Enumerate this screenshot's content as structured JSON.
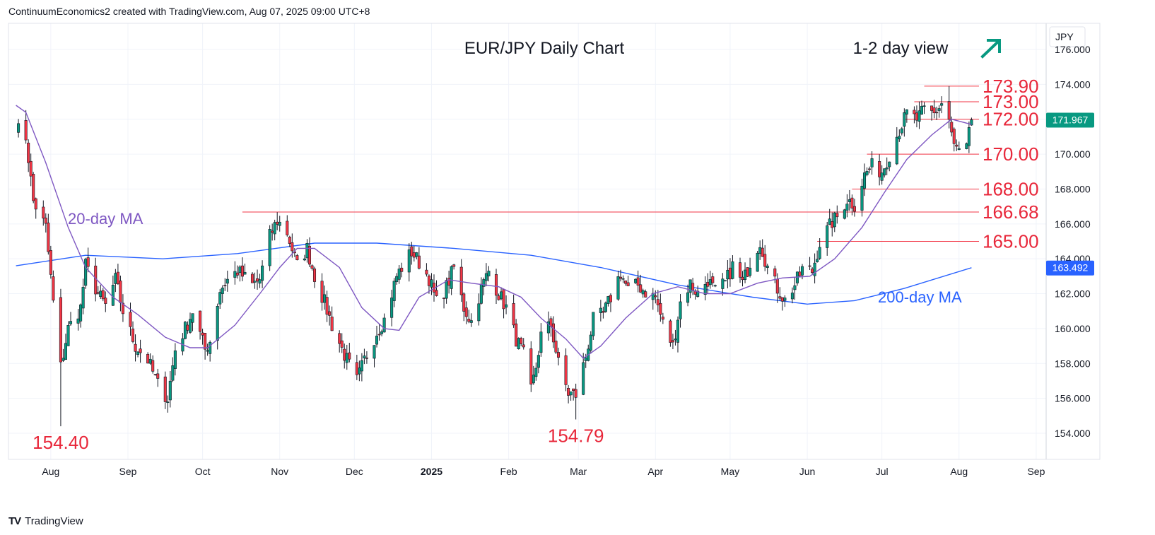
{
  "header": {
    "attribution": "ContinuumEconomics2 created with TradingView.com, Aug 07, 2025 09:00 UTC+8"
  },
  "brand": {
    "logo_text": "TV",
    "name": "TradingView"
  },
  "colors": {
    "bull": "#089981",
    "bear": "#f23645",
    "ma20": "#7e57c2",
    "ma200": "#2962ff",
    "level": "#f23645",
    "arrow": "#089981"
  },
  "chart_data": {
    "type": "candlestick",
    "title": "EUR/JPY Daily Chart",
    "view_label": "1-2 day view",
    "view_direction": "up",
    "currency_label": "JPY",
    "price_badge": "171.967",
    "ma200_badge": "163.492",
    "ylim": [
      152.5,
      177.5
    ],
    "y_ticks": [
      "154.000",
      "156.000",
      "158.000",
      "160.000",
      "162.000",
      "164.000",
      "166.000",
      "168.000",
      "170.000",
      "172.000",
      "174.000",
      "176.000"
    ],
    "x_ticks": [
      {
        "label": "Aug",
        "date": "2024-08-01"
      },
      {
        "label": "Sep",
        "date": "2024-09-01"
      },
      {
        "label": "Oct",
        "date": "2024-10-01"
      },
      {
        "label": "Nov",
        "date": "2024-11-01"
      },
      {
        "label": "Dec",
        "date": "2024-12-01"
      },
      {
        "label": "2025",
        "date": "2025-01-01"
      },
      {
        "label": "Feb",
        "date": "2025-02-01"
      },
      {
        "label": "Mar",
        "date": "2025-03-01"
      },
      {
        "label": "Apr",
        "date": "2025-04-01"
      },
      {
        "label": "May",
        "date": "2025-05-01"
      },
      {
        "label": "Jun",
        "date": "2025-06-01"
      },
      {
        "label": "Jul",
        "date": "2025-07-01"
      },
      {
        "label": "Aug",
        "date": "2025-08-01"
      },
      {
        "label": "Sep",
        "date": "2025-09-01"
      }
    ],
    "levels": [
      {
        "label": "173.90",
        "value": 173.9,
        "from": "2025-07-18"
      },
      {
        "label": "173.00",
        "value": 173.0,
        "from": "2025-07-14"
      },
      {
        "label": "172.00",
        "value": 172.0,
        "from": "2025-07-10"
      },
      {
        "label": "170.00",
        "value": 170.0,
        "from": "2025-06-25"
      },
      {
        "label": "168.00",
        "value": 168.0,
        "from": "2025-06-19"
      },
      {
        "label": "166.68",
        "value": 166.68,
        "from": "2024-10-17"
      },
      {
        "label": "165.00",
        "value": 165.0,
        "from": "2025-06-05"
      }
    ],
    "annotations": [
      {
        "text": "154.40",
        "date": "2024-08-05",
        "value": 154.4
      },
      {
        "text": "154.79",
        "date": "2025-02-28",
        "value": 154.79
      }
    ],
    "ma_labels": [
      {
        "text": "20-day MA",
        "series": "ma20"
      },
      {
        "text": "200-day MA",
        "series": "ma200"
      }
    ],
    "anchors": [
      [
        "2024-07-18",
        171.5
      ],
      [
        "2024-07-22",
        171.0
      ],
      [
        "2024-07-25",
        167.3
      ],
      [
        "2024-07-30",
        165.8
      ],
      [
        "2024-08-02",
        161.5
      ],
      [
        "2024-08-05",
        157.8
      ],
      [
        "2024-08-08",
        160.0
      ],
      [
        "2024-08-13",
        161.2
      ],
      [
        "2024-08-15",
        163.6
      ],
      [
        "2024-08-20",
        162.0
      ],
      [
        "2024-08-23",
        161.3
      ],
      [
        "2024-08-27",
        162.8
      ],
      [
        "2024-08-30",
        161.0
      ],
      [
        "2024-09-04",
        159.0
      ],
      [
        "2024-09-09",
        158.2
      ],
      [
        "2024-09-13",
        156.8
      ],
      [
        "2024-09-17",
        156.0
      ],
      [
        "2024-09-20",
        158.8
      ],
      [
        "2024-09-25",
        160.3
      ],
      [
        "2024-09-27",
        161.0
      ],
      [
        "2024-10-02",
        158.8
      ],
      [
        "2024-10-04",
        159.3
      ],
      [
        "2024-10-08",
        162.2
      ],
      [
        "2024-10-11",
        162.8
      ],
      [
        "2024-10-15",
        163.3
      ],
      [
        "2024-10-21",
        162.5
      ],
      [
        "2024-10-24",
        162.8
      ],
      [
        "2024-10-28",
        165.3
      ],
      [
        "2024-10-31",
        166.2
      ],
      [
        "2024-11-04",
        165.5
      ],
      [
        "2024-11-08",
        163.6
      ],
      [
        "2024-11-12",
        164.6
      ],
      [
        "2024-11-15",
        163.0
      ],
      [
        "2024-11-19",
        161.5
      ],
      [
        "2024-11-22",
        160.2
      ],
      [
        "2024-11-27",
        158.5
      ],
      [
        "2024-12-02",
        157.0
      ],
      [
        "2024-12-05",
        158.2
      ],
      [
        "2024-12-10",
        159.8
      ],
      [
        "2024-12-13",
        160.5
      ],
      [
        "2024-12-18",
        163.0
      ],
      [
        "2024-12-20",
        163.5
      ],
      [
        "2024-12-24",
        164.4
      ],
      [
        "2024-12-27",
        163.8
      ],
      [
        "2024-12-31",
        162.9
      ],
      [
        "2025-01-03",
        161.5
      ],
      [
        "2025-01-07",
        162.4
      ],
      [
        "2025-01-10",
        163.5
      ],
      [
        "2025-01-14",
        161.2
      ],
      [
        "2025-01-17",
        160.4
      ],
      [
        "2025-01-21",
        162.3
      ],
      [
        "2025-01-24",
        163.3
      ],
      [
        "2025-01-28",
        162.0
      ],
      [
        "2025-01-31",
        161.2
      ],
      [
        "2025-02-04",
        159.4
      ],
      [
        "2025-02-07",
        158.5
      ],
      [
        "2025-02-10",
        156.4
      ],
      [
        "2025-02-12",
        157.8
      ],
      [
        "2025-02-14",
        159.6
      ],
      [
        "2025-02-18",
        160.2
      ],
      [
        "2025-02-21",
        158.0
      ],
      [
        "2025-02-25",
        156.3
      ],
      [
        "2025-02-28",
        156.2
      ],
      [
        "2025-03-04",
        158.4
      ],
      [
        "2025-03-07",
        160.5
      ],
      [
        "2025-03-11",
        160.8
      ],
      [
        "2025-03-14",
        161.8
      ],
      [
        "2025-03-18",
        163.2
      ],
      [
        "2025-03-21",
        162.2
      ],
      [
        "2025-03-25",
        162.5
      ],
      [
        "2025-03-28",
        162.1
      ],
      [
        "2025-04-01",
        161.8
      ],
      [
        "2025-04-04",
        160.3
      ],
      [
        "2025-04-08",
        159.0
      ],
      [
        "2025-04-11",
        161.5
      ],
      [
        "2025-04-15",
        162.6
      ],
      [
        "2025-04-18",
        162.0
      ],
      [
        "2025-04-22",
        162.8
      ],
      [
        "2025-04-25",
        162.1
      ],
      [
        "2025-04-29",
        162.6
      ],
      [
        "2025-05-02",
        163.6
      ],
      [
        "2025-05-06",
        162.6
      ],
      [
        "2025-05-09",
        163.8
      ],
      [
        "2025-05-13",
        165.0
      ],
      [
        "2025-05-16",
        163.5
      ],
      [
        "2025-05-20",
        162.3
      ],
      [
        "2025-05-23",
        161.6
      ],
      [
        "2025-05-27",
        162.5
      ],
      [
        "2025-05-30",
        163.4
      ],
      [
        "2025-06-03",
        163.3
      ],
      [
        "2025-06-06",
        164.9
      ],
      [
        "2025-06-11",
        166.1
      ],
      [
        "2025-06-13",
        166.4
      ],
      [
        "2025-06-17",
        167.4
      ],
      [
        "2025-06-20",
        167.1
      ],
      [
        "2025-06-24",
        168.8
      ],
      [
        "2025-06-27",
        169.3
      ],
      [
        "2025-07-01",
        169.0
      ],
      [
        "2025-07-04",
        170.0
      ],
      [
        "2025-07-08",
        171.4
      ],
      [
        "2025-07-11",
        172.3
      ],
      [
        "2025-07-15",
        172.0
      ],
      [
        "2025-07-18",
        172.5
      ],
      [
        "2025-07-22",
        172.3
      ],
      [
        "2025-07-25",
        172.9
      ],
      [
        "2025-07-28",
        172.0
      ],
      [
        "2025-07-30",
        170.4
      ],
      [
        "2025-08-01",
        170.2
      ],
      [
        "2025-08-04",
        170.4
      ],
      [
        "2025-08-06",
        171.97
      ]
    ],
    "ma20_points": [
      [
        "2024-07-18",
        172.8
      ],
      [
        "2024-07-22",
        172.4
      ],
      [
        "2024-07-30",
        169.5
      ],
      [
        "2024-08-08",
        165.8
      ],
      [
        "2024-08-15",
        163.5
      ],
      [
        "2024-08-26",
        161.8
      ],
      [
        "2024-09-05",
        160.8
      ],
      [
        "2024-09-16",
        159.5
      ],
      [
        "2024-09-26",
        158.9
      ],
      [
        "2024-10-03",
        158.9
      ],
      [
        "2024-10-14",
        160.2
      ],
      [
        "2024-10-24",
        162.0
      ],
      [
        "2024-11-01",
        163.5
      ],
      [
        "2024-11-08",
        164.6
      ],
      [
        "2024-11-15",
        164.6
      ],
      [
        "2024-11-25",
        163.5
      ],
      [
        "2024-12-04",
        161.2
      ],
      [
        "2024-12-13",
        160.0
      ],
      [
        "2024-12-19",
        159.9
      ],
      [
        "2024-12-27",
        161.8
      ],
      [
        "2025-01-08",
        162.8
      ],
      [
        "2025-01-17",
        162.6
      ],
      [
        "2025-01-28",
        162.4
      ],
      [
        "2025-02-06",
        161.8
      ],
      [
        "2025-02-14",
        160.6
      ],
      [
        "2025-02-24",
        159.4
      ],
      [
        "2025-03-03",
        158.3
      ],
      [
        "2025-03-10",
        159.0
      ],
      [
        "2025-03-20",
        160.6
      ],
      [
        "2025-03-31",
        162.0
      ],
      [
        "2025-04-10",
        162.4
      ],
      [
        "2025-04-21",
        162.0
      ],
      [
        "2025-05-01",
        162.0
      ],
      [
        "2025-05-12",
        162.6
      ],
      [
        "2025-05-22",
        162.9
      ],
      [
        "2025-06-02",
        163.0
      ],
      [
        "2025-06-12",
        164.0
      ],
      [
        "2025-06-23",
        165.8
      ],
      [
        "2025-07-02",
        167.8
      ],
      [
        "2025-07-11",
        169.7
      ],
      [
        "2025-07-21",
        171.1
      ],
      [
        "2025-07-29",
        172.0
      ],
      [
        "2025-08-06",
        171.7
      ]
    ],
    "ma200_points": [
      [
        "2024-07-18",
        163.6
      ],
      [
        "2024-08-15",
        164.2
      ],
      [
        "2024-09-15",
        164.0
      ],
      [
        "2024-10-15",
        164.3
      ],
      [
        "2024-11-15",
        164.9
      ],
      [
        "2024-12-10",
        164.9
      ],
      [
        "2025-01-10",
        164.6
      ],
      [
        "2025-02-10",
        164.2
      ],
      [
        "2025-03-10",
        163.5
      ],
      [
        "2025-04-10",
        162.5
      ],
      [
        "2025-05-10",
        161.8
      ],
      [
        "2025-06-01",
        161.4
      ],
      [
        "2025-06-20",
        161.6
      ],
      [
        "2025-07-10",
        162.3
      ],
      [
        "2025-08-06",
        163.49
      ]
    ]
  }
}
